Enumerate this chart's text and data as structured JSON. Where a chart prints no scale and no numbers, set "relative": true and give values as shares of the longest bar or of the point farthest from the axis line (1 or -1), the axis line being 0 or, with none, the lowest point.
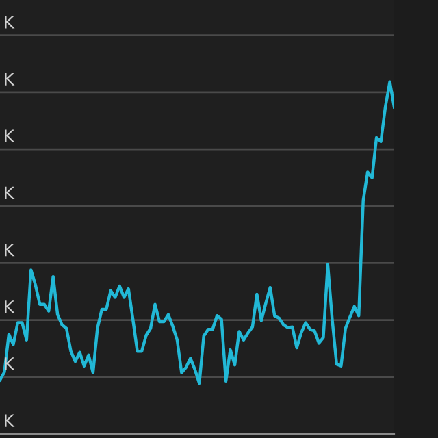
{
  "chart_data": {
    "type": "line",
    "relative": true,
    "categories": [
      null,
      null,
      null,
      null,
      null,
      null,
      null,
      null,
      null,
      null,
      null,
      null,
      null,
      null,
      null,
      null,
      null,
      null,
      null,
      null,
      null,
      null,
      null,
      null,
      null,
      null,
      null,
      null,
      null,
      null,
      null,
      null,
      null,
      null,
      null,
      null,
      null,
      null,
      null,
      null,
      null,
      null,
      null,
      null,
      null,
      null,
      null,
      null,
      null,
      null,
      null,
      null,
      null,
      null,
      null,
      null,
      null,
      null,
      null,
      null,
      null,
      null,
      null,
      null,
      null,
      null,
      null,
      null,
      null,
      null,
      null,
      null,
      null,
      null,
      null,
      null,
      null,
      null,
      null,
      null,
      null,
      null,
      null,
      null,
      null,
      null,
      null,
      null,
      null,
      null
    ],
    "series": [
      {
        "color": "#22b8d6",
        "values": [
          0.153,
          0.176,
          0.283,
          0.254,
          0.316,
          0.316,
          0.267,
          0.466,
          0.423,
          0.368,
          0.368,
          0.349,
          0.447,
          0.339,
          0.31,
          0.3,
          0.235,
          0.206,
          0.232,
          0.193,
          0.224,
          0.174,
          0.3,
          0.354,
          0.354,
          0.407,
          0.388,
          0.42,
          0.388,
          0.412,
          0.326,
          0.235,
          0.235,
          0.28,
          0.3,
          0.368,
          0.319,
          0.319,
          0.339,
          0.306,
          0.267,
          0.174,
          0.189,
          0.215,
          0.183,
          0.144,
          0.278,
          0.297,
          0.297,
          0.336,
          0.326,
          0.15,
          0.239,
          0.196,
          0.291,
          0.267,
          0.287,
          0.304,
          0.397,
          0.322,
          0.371,
          0.416,
          0.335,
          0.329,
          0.31,
          0.302,
          0.304,
          0.245,
          0.287,
          0.316,
          0.297,
          0.293,
          0.258,
          0.274,
          0.481,
          0.326,
          0.198,
          0.193,
          0.3,
          0.332,
          0.362,
          0.336,
          0.663,
          0.744,
          0.728,
          0.842,
          0.831,
          0.929,
          1.0,
          0.929
        ]
      }
    ],
    "annotations": [
      "K",
      "K",
      "K",
      "K",
      "K",
      "K",
      "K",
      "K"
    ],
    "grid": "y",
    "legend": false,
    "marker": "none",
    "line_style": "solid"
  }
}
